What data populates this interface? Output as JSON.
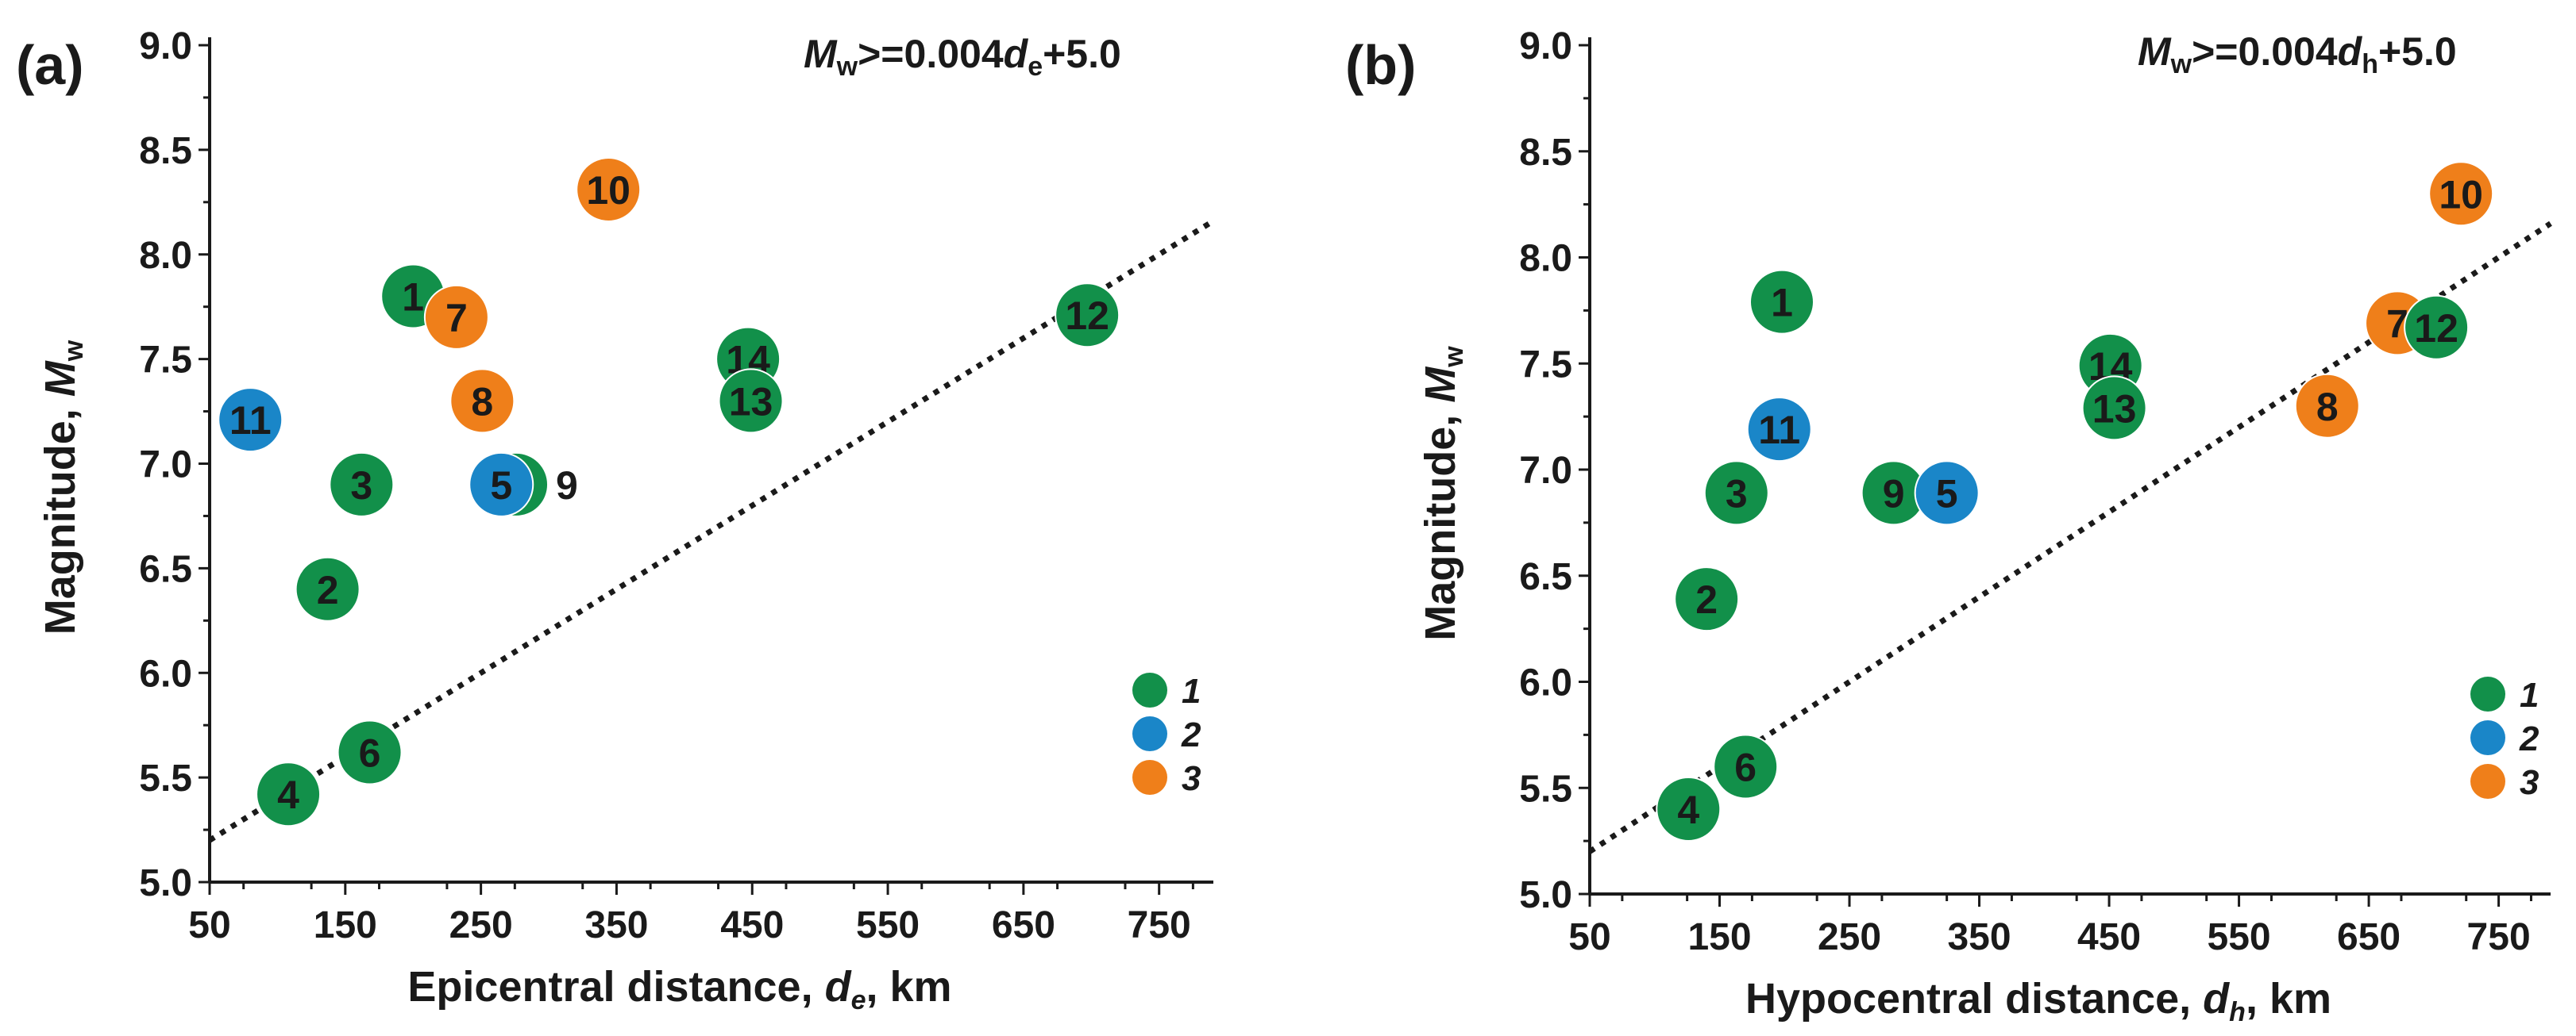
{
  "colors": {
    "1": "#12904a",
    "2": "#1a86c8",
    "3": "#ef7f1a"
  },
  "chart_data": [
    {
      "type": "scatter",
      "panel_label": "(a)",
      "equation": {
        "lhs_main": "M",
        "lhs_sub": "w",
        "op": ">=0.004",
        "var_main": "d",
        "var_sub": "e",
        "rhs": "+5.0"
      },
      "xlabel": {
        "pre": "Epicentral distance, ",
        "var_main": "d",
        "var_sub": "e",
        "post": ", km",
        "var_italic": true
      },
      "ylabel": {
        "pre": "Magnitude, ",
        "var_main": "M",
        "var_sub": "w"
      },
      "xlim": [
        50,
        790
      ],
      "ylim": [
        5.0,
        9.0
      ],
      "xticks": [
        "50",
        "150",
        "250",
        "350",
        "450",
        "550",
        "650",
        "750"
      ],
      "yticks": [
        "5.0",
        "5.5",
        "6.0",
        "6.5",
        "7.0",
        "7.5",
        "8.0",
        "8.5",
        "9.0"
      ],
      "fit_line": {
        "slope": 0.004,
        "intercept": 5.0,
        "x_range": [
          50,
          790
        ]
      },
      "legend": {
        "position": "lower-right",
        "entries": [
          "1",
          "2",
          "3"
        ]
      },
      "points": [
        {
          "id": "1",
          "group": "1",
          "x": 200,
          "y": 7.8
        },
        {
          "id": "7",
          "group": "3",
          "x": 232,
          "y": 7.7
        },
        {
          "id": "2",
          "group": "1",
          "x": 137,
          "y": 6.4
        },
        {
          "id": "3",
          "group": "1",
          "x": 162,
          "y": 6.9
        },
        {
          "id": "4",
          "group": "1",
          "x": 108,
          "y": 5.42
        },
        {
          "id": "6",
          "group": "1",
          "x": 168,
          "y": 5.62
        },
        {
          "id": "9",
          "group": "1",
          "x": 276,
          "y": 6.9,
          "label_outside": true
        },
        {
          "id": "5",
          "group": "2",
          "x": 265,
          "y": 6.9
        },
        {
          "id": "11",
          "group": "2",
          "x": 80,
          "y": 7.21
        },
        {
          "id": "8",
          "group": "3",
          "x": 251,
          "y": 7.3
        },
        {
          "id": "10",
          "group": "3",
          "x": 344,
          "y": 8.31
        },
        {
          "id": "14",
          "group": "1",
          "x": 447,
          "y": 7.5
        },
        {
          "id": "13",
          "group": "1",
          "x": 449,
          "y": 7.3
        },
        {
          "id": "12",
          "group": "1",
          "x": 697,
          "y": 7.71
        }
      ]
    },
    {
      "type": "scatter",
      "panel_label": "(b)",
      "equation": {
        "lhs_main": "M",
        "lhs_sub": "w",
        "op": ">=0.004",
        "var_main": "d",
        "var_sub": "h",
        "rhs": "+5.0"
      },
      "xlabel": {
        "pre": "Hypocentral distance, ",
        "var_main": "d",
        "var_sub": "h",
        "post": ", km",
        "var_italic": true
      },
      "ylabel": {
        "pre": "Magnitude, ",
        "var_main": "M",
        "var_sub": "w"
      },
      "xlim": [
        50,
        790
      ],
      "ylim": [
        5.0,
        9.0
      ],
      "xticks": [
        "50",
        "150",
        "250",
        "350",
        "450",
        "550",
        "650",
        "750"
      ],
      "yticks": [
        "5.0",
        "5.5",
        "6.0",
        "6.5",
        "7.0",
        "7.5",
        "8.0",
        "8.5",
        "9.0"
      ],
      "fit_line": {
        "slope": 0.004,
        "intercept": 5.0,
        "x_range": [
          50,
          790
        ]
      },
      "legend": {
        "position": "lower-right",
        "entries": [
          "1",
          "2",
          "3"
        ]
      },
      "points": [
        {
          "id": "1",
          "group": "1",
          "x": 198,
          "y": 7.79
        },
        {
          "id": "2",
          "group": "1",
          "x": 140,
          "y": 6.39
        },
        {
          "id": "3",
          "group": "1",
          "x": 163,
          "y": 6.89
        },
        {
          "id": "4",
          "group": "1",
          "x": 126,
          "y": 5.4
        },
        {
          "id": "6",
          "group": "1",
          "x": 170,
          "y": 5.6
        },
        {
          "id": "11",
          "group": "2",
          "x": 196,
          "y": 7.19
        },
        {
          "id": "9",
          "group": "1",
          "x": 284,
          "y": 6.89
        },
        {
          "id": "5",
          "group": "2",
          "x": 325,
          "y": 6.89
        },
        {
          "id": "14",
          "group": "1",
          "x": 451,
          "y": 7.49
        },
        {
          "id": "13",
          "group": "1",
          "x": 454,
          "y": 7.29
        },
        {
          "id": "8",
          "group": "3",
          "x": 618,
          "y": 7.3
        },
        {
          "id": "7",
          "group": "3",
          "x": 672,
          "y": 7.69
        },
        {
          "id": "12",
          "group": "1",
          "x": 702,
          "y": 7.67
        },
        {
          "id": "10",
          "group": "3",
          "x": 721,
          "y": 8.3
        }
      ]
    }
  ]
}
